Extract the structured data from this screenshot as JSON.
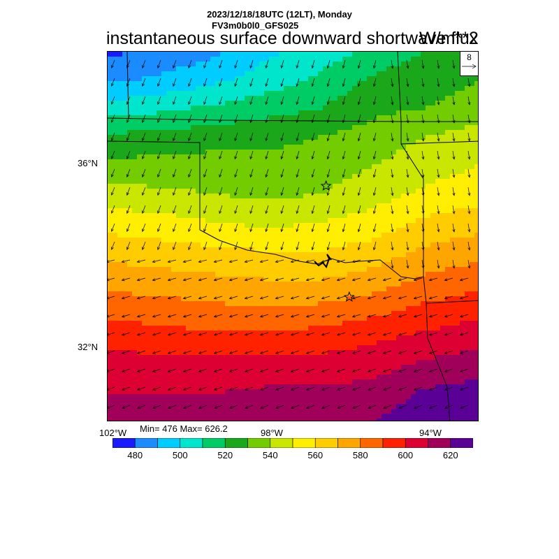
{
  "header": {
    "datetime": "2023/12/18/18UTC (12LT), Monday",
    "model": "FV3m0b0l0_GFS025",
    "title": "instantaneous surface downward shortwave flux",
    "units": "W/m**2"
  },
  "vector_reference": {
    "value": "8"
  },
  "axes": {
    "lat_labels": [
      "36°N",
      "32°N"
    ],
    "lon_labels": [
      "102°W",
      "98°W",
      "94°W"
    ]
  },
  "stats": {
    "text": "Min= 476 Max= 626.2",
    "min": 476,
    "max": 626.2
  },
  "colorbar": {
    "colors": [
      "#1a1aff",
      "#1a8cff",
      "#00ccff",
      "#00e5cc",
      "#00cc66",
      "#1aa81a",
      "#73cc00",
      "#c8e600",
      "#ffee00",
      "#ffcc00",
      "#ffa500",
      "#ff6600",
      "#ff2200",
      "#dd0033",
      "#a0005a",
      "#5a0096"
    ],
    "bounds": [
      470,
      480,
      490,
      500,
      510,
      520,
      530,
      540,
      550,
      560,
      570,
      580,
      590,
      600,
      610,
      620,
      630
    ],
    "tick_labels": [
      "480",
      "500",
      "520",
      "540",
      "560",
      "580",
      "600",
      "620"
    ]
  },
  "chart_data": {
    "type": "heatmap",
    "variable": "instantaneous surface downward shortwave flux",
    "units": "W/m**2",
    "lat_range": [
      30.0,
      38.0
    ],
    "lon_range": [
      -102.0,
      -94.0
    ],
    "field_rows_north_to_south": [
      {
        "lat": 37.8,
        "values": [
          478,
          482,
          488,
          498,
          505,
          512,
          520,
          528
        ]
      },
      {
        "lat": 37.2,
        "values": [
          488,
          492,
          498,
          505,
          512,
          522,
          528,
          530
        ]
      },
      {
        "lat": 36.6,
        "values": [
          505,
          508,
          512,
          516,
          520,
          528,
          530,
          532
        ]
      },
      {
        "lat": 36.0,
        "values": [
          522,
          524,
          526,
          528,
          530,
          534,
          540,
          546
        ]
      },
      {
        "lat": 35.4,
        "values": [
          532,
          534,
          534,
          532,
          534,
          540,
          546,
          550
        ]
      },
      {
        "lat": 34.8,
        "values": [
          544,
          542,
          540,
          538,
          540,
          546,
          552,
          556
        ]
      },
      {
        "lat": 34.2,
        "values": [
          556,
          554,
          550,
          548,
          550,
          554,
          562,
          566
        ]
      },
      {
        "lat": 33.6,
        "values": [
          566,
          564,
          562,
          560,
          560,
          564,
          572,
          576
        ]
      },
      {
        "lat": 33.0,
        "values": [
          576,
          574,
          572,
          570,
          570,
          574,
          582,
          586
        ]
      },
      {
        "lat": 32.4,
        "values": [
          586,
          584,
          582,
          580,
          582,
          586,
          592,
          596
        ]
      },
      {
        "lat": 31.8,
        "values": [
          596,
          594,
          592,
          592,
          594,
          598,
          602,
          606
        ]
      },
      {
        "lat": 31.2,
        "values": [
          604,
          604,
          604,
          604,
          604,
          606,
          612,
          616
        ]
      },
      {
        "lat": 30.6,
        "values": [
          610,
          610,
          610,
          612,
          612,
          614,
          622,
          624
        ]
      },
      {
        "lat": 30.1,
        "values": [
          612,
          614,
          616,
          616,
          618,
          620,
          626,
          626
        ]
      }
    ],
    "markers": [
      {
        "symbol": "star",
        "lat": 35.1,
        "lon": -97.3
      },
      {
        "symbol": "star",
        "lat": 32.7,
        "lon": -96.8
      }
    ]
  }
}
